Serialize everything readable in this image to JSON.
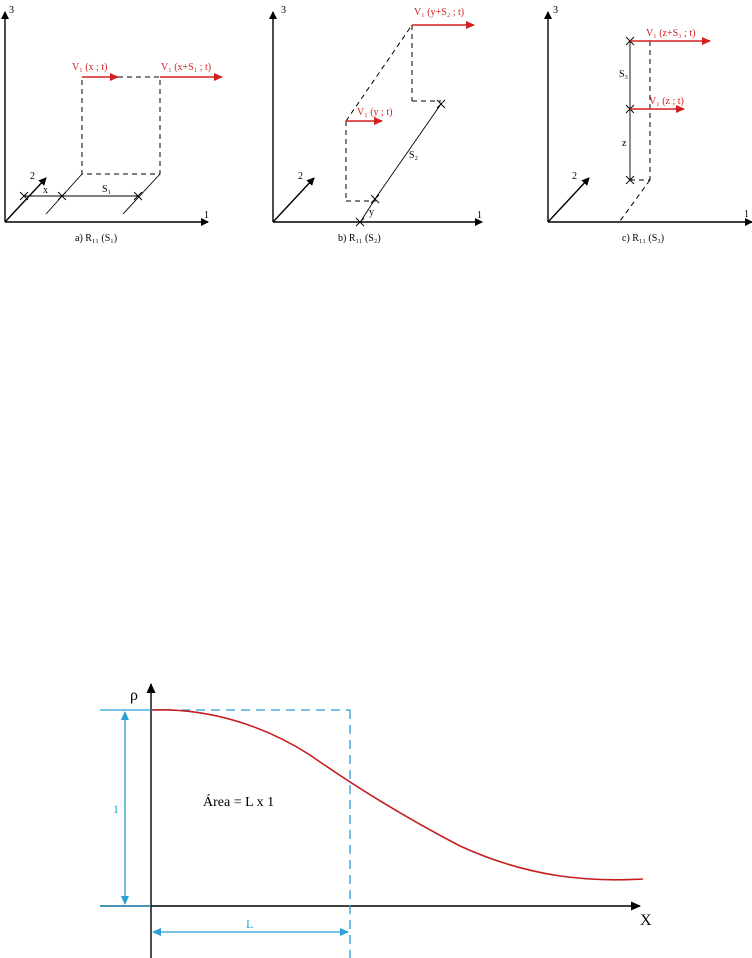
{
  "diagrams": [
    {
      "caption": "a) R₁₁ (S₁)",
      "axis1": "1",
      "axis2": "2",
      "axis3": "3",
      "vel_left": "V₁ (x ; t)",
      "vel_right": "V₁ (x+S₁ ; t)",
      "offset": "x",
      "separation": "S₁"
    },
    {
      "caption": "b) R₁₁ (S₂)",
      "axis1": "1",
      "axis2": "2",
      "axis3": "3",
      "vel_low": "V₁ (y ; t)",
      "vel_high": "V₁ (y+S₂ ; t)",
      "offset": "y",
      "separation": "S₂"
    },
    {
      "caption": "c) R₁₁ (S₃)",
      "axis1": "1",
      "axis2": "2",
      "axis3": "3",
      "vel_high": "V₁ (z+S₃ ; t)",
      "vel_low": "V₁ (z ; t)",
      "offset": "z",
      "separation": "S₃"
    }
  ],
  "plot": {
    "ylabel": "ρ",
    "xlabel": "X",
    "height_label": "1",
    "width_label": "L",
    "area_text": "Área = L x 1"
  },
  "colors": {
    "velocity": "#d42020",
    "dimension": "#2a9fd6",
    "curve": "#c41e1e"
  }
}
